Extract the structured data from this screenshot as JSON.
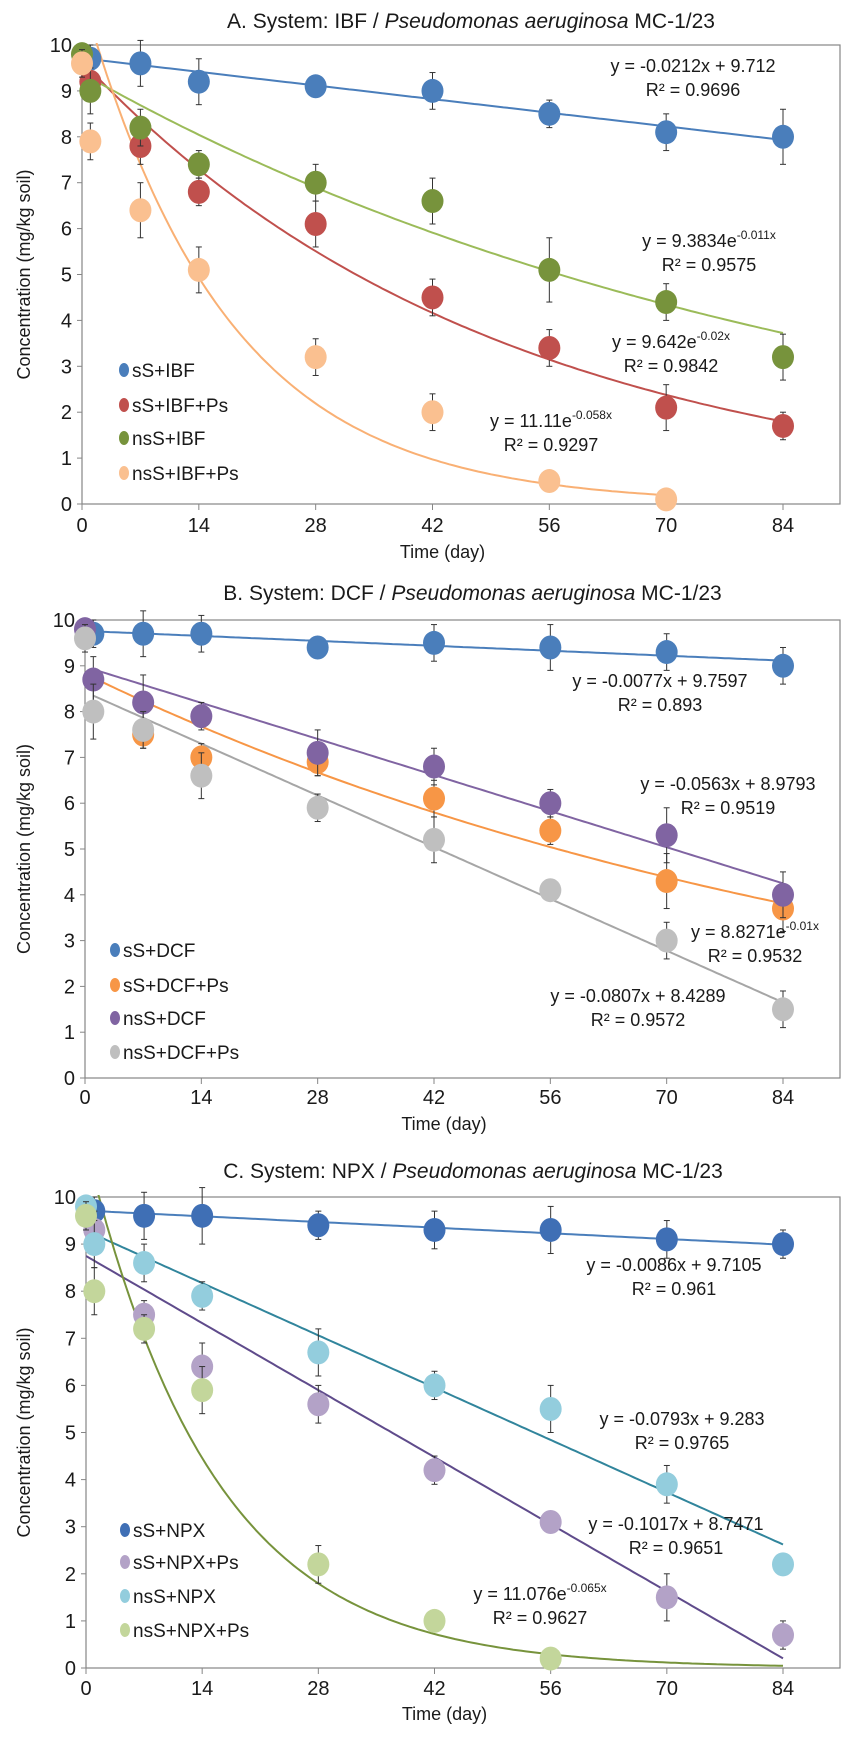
{
  "chart_data": [
    {
      "type": "scatter",
      "title": {
        "prefix": "A. System: IBF / ",
        "italic": "Pseudomonas aeruginosa",
        "suffix": " MC-1/23"
      },
      "xlabel": "Time (day)",
      "ylabel": "Concentration (mg/kg soil)",
      "xlim": [
        0,
        84
      ],
      "ylim": [
        0,
        10
      ],
      "xticks": [
        0,
        14,
        28,
        42,
        56,
        70,
        84
      ],
      "yticks": [
        0,
        1,
        2,
        3,
        4,
        5,
        6,
        7,
        8,
        9,
        10
      ],
      "legend_position": "bottom-left",
      "x": [
        0,
        1,
        7,
        14,
        28,
        42,
        56,
        70,
        84
      ],
      "series": [
        {
          "name": "sS+IBF",
          "color": "#4a7ebb",
          "values": [
            null,
            9.7,
            9.6,
            9.2,
            9.1,
            9.0,
            8.5,
            8.1,
            8.0
          ],
          "errors": [
            null,
            0.3,
            0.5,
            0.5,
            0.1,
            0.4,
            0.3,
            0.4,
            0.6
          ],
          "trend": {
            "type": "linear",
            "slope": -0.0212,
            "intercept": 9.712,
            "color": "#4a7ebb",
            "range": [
              0,
              84
            ],
            "label": "y = -0.0212x + 9.712",
            "exp": "",
            "r2": "R² = 0.9696"
          }
        },
        {
          "name": "sS+IBF+Ps",
          "color": "#c0504d",
          "values": [
            null,
            9.2,
            7.8,
            6.8,
            6.1,
            4.5,
            3.4,
            2.1,
            1.7
          ],
          "errors": [
            null,
            0.3,
            0.4,
            0.3,
            0.5,
            0.4,
            0.4,
            0.5,
            0.3
          ],
          "trend": {
            "type": "exp",
            "a": 9.642,
            "b": -0.02,
            "color": "#c0504d",
            "range": [
              0,
              84
            ],
            "label": "y = 9.642e",
            "exp": "-0.02x",
            "r2": "R² = 0.9842"
          }
        },
        {
          "name": "nsS+IBF",
          "color": "#77933c",
          "values": [
            9.8,
            9.0,
            8.2,
            7.4,
            7.0,
            6.6,
            5.1,
            4.4,
            3.2
          ],
          "errors": [
            0.2,
            0.5,
            0.4,
            0.3,
            0.4,
            0.5,
            0.7,
            0.4,
            0.5
          ],
          "trend": {
            "type": "exp",
            "a": 9.3834,
            "b": -0.011,
            "color": "#9bbb59",
            "range": [
              0,
              84
            ],
            "label": "y = 9.3834e",
            "exp": "-0.011x",
            "r2": "R² = 0.9575"
          }
        },
        {
          "name": "nsS+IBF+Ps",
          "color": "#fac090",
          "values": [
            9.6,
            7.9,
            6.4,
            5.1,
            3.2,
            2.0,
            0.5,
            0.1,
            null
          ],
          "errors": [
            0.3,
            0.4,
            0.6,
            0.5,
            0.4,
            0.4,
            0.1,
            0.1,
            null
          ],
          "trend": {
            "type": "exp",
            "a": 11.11,
            "b": -0.058,
            "color": "#f9b074",
            "range": [
              0,
              70
            ],
            "label": "y = 11.11e",
            "exp": "-0.058x",
            "r2": "R² = 0.9297"
          }
        }
      ]
    },
    {
      "type": "scatter",
      "title": {
        "prefix": "B. System: DCF / ",
        "italic": "Pseudomonas aeruginosa",
        "suffix": " MC-1/23"
      },
      "xlabel": "Time (day)",
      "ylabel": "Concentration (mg/kg soil)",
      "xlim": [
        0,
        84
      ],
      "ylim": [
        0,
        10
      ],
      "xticks": [
        0,
        14,
        28,
        42,
        56,
        70,
        84
      ],
      "yticks": [
        0,
        1,
        2,
        3,
        4,
        5,
        6,
        7,
        8,
        9,
        10
      ],
      "legend_position": "bottom-left",
      "x": [
        0,
        1,
        7,
        14,
        28,
        42,
        56,
        70,
        84
      ],
      "series": [
        {
          "name": "sS+DCF",
          "color": "#4a7ebb",
          "values": [
            null,
            9.7,
            9.7,
            9.7,
            9.4,
            9.5,
            9.4,
            9.3,
            9.0
          ],
          "errors": [
            null,
            0.3,
            0.5,
            0.4,
            0.2,
            0.4,
            0.5,
            0.4,
            0.4
          ],
          "trend": {
            "type": "linear",
            "slope": -0.0077,
            "intercept": 9.7597,
            "color": "#4a7ebb",
            "range": [
              0,
              84
            ],
            "label": "y = -0.0077x + 9.7597",
            "exp": "",
            "r2": "R² = 0.893"
          }
        },
        {
          "name": "sS+DCF+Ps",
          "color": "#f79646",
          "values": [
            null,
            null,
            7.5,
            7.0,
            6.9,
            6.1,
            5.4,
            4.3,
            3.7
          ],
          "errors": [
            null,
            null,
            0.3,
            0.3,
            0.3,
            0.4,
            0.3,
            0.6,
            0.5
          ],
          "trend": {
            "type": "exp",
            "a": 8.8271,
            "b": -0.01,
            "color": "#f79646",
            "range": [
              1,
              84
            ],
            "label": "y = 8.8271e",
            "exp": "-0.01x",
            "r2": "R² = 0.9532"
          }
        },
        {
          "name": "nsS+DCF",
          "color": "#8064a2",
          "values": [
            9.8,
            8.7,
            8.2,
            7.9,
            7.1,
            6.8,
            6.0,
            5.3,
            4.0
          ],
          "errors": [
            0.2,
            0.5,
            0.6,
            0.3,
            0.5,
            0.4,
            0.3,
            0.6,
            0.5
          ],
          "trend": {
            "type": "linear",
            "slope": -0.0563,
            "intercept": 8.9793,
            "color": "#8064a2",
            "range": [
              1,
              84
            ],
            "label": "y = -0.0563x + 8.9793",
            "exp": "",
            "r2": "R² = 0.9519"
          }
        },
        {
          "name": "nsS+DCF+Ps",
          "color": "#bfbfbf",
          "values": [
            9.6,
            8.0,
            7.6,
            6.6,
            5.9,
            5.2,
            4.1,
            3.0,
            1.5
          ],
          "errors": [
            0.3,
            0.6,
            0.4,
            0.5,
            0.3,
            0.5,
            0.1,
            0.4,
            0.4
          ],
          "trend": {
            "type": "linear",
            "slope": -0.0807,
            "intercept": 8.4289,
            "color": "#a6a6a6",
            "range": [
              1,
              84
            ],
            "label": "y = -0.0807x + 8.4289",
            "exp": "",
            "r2": "R² = 0.9572"
          }
        }
      ]
    },
    {
      "type": "scatter",
      "title": {
        "prefix": "C. System: NPX / ",
        "italic": "Pseudomonas aeruginosa",
        "suffix": " MC-1/23"
      },
      "xlabel": "Time (day)",
      "ylabel": "Concentration (mg/kg soil)",
      "xlim": [
        0,
        84
      ],
      "ylim": [
        0,
        10
      ],
      "xticks": [
        0,
        14,
        28,
        42,
        56,
        70,
        84
      ],
      "yticks": [
        0,
        1,
        2,
        3,
        4,
        5,
        6,
        7,
        8,
        9,
        10
      ],
      "legend_position": "bottom-left",
      "x": [
        0,
        1,
        7,
        14,
        28,
        42,
        56,
        70,
        84
      ],
      "series": [
        {
          "name": "sS+NPX",
          "color": "#3f6fb5",
          "values": [
            null,
            9.7,
            9.6,
            9.6,
            9.4,
            9.3,
            9.3,
            9.1,
            9.0
          ],
          "errors": [
            null,
            0.3,
            0.5,
            0.6,
            0.3,
            0.4,
            0.5,
            0.4,
            0.3
          ],
          "trend": {
            "type": "linear",
            "slope": -0.0086,
            "intercept": 9.7105,
            "color": "#4a7ebb",
            "range": [
              0,
              84
            ],
            "label": "y = -0.0086x + 9.7105",
            "exp": "",
            "r2": "R² = 0.961"
          }
        },
        {
          "name": "sS+NPX+Ps",
          "color": "#b3a2c7",
          "values": [
            null,
            9.3,
            7.5,
            6.4,
            5.6,
            4.2,
            3.1,
            1.5,
            0.7
          ],
          "errors": [
            null,
            0.4,
            0.3,
            0.5,
            0.4,
            0.3,
            0.2,
            0.5,
            0.3
          ],
          "trend": {
            "type": "linear",
            "slope": -0.1017,
            "intercept": 8.7471,
            "color": "#5f4b8b",
            "range": [
              0,
              84
            ],
            "label": "y = -0.1017x + 8.7471",
            "exp": "",
            "r2": "R² = 0.9651"
          }
        },
        {
          "name": "nsS+NPX",
          "color": "#93cddd",
          "values": [
            9.8,
            9.0,
            8.6,
            7.9,
            6.7,
            6.0,
            5.5,
            3.9,
            2.2
          ],
          "errors": [
            0.2,
            0.5,
            0.4,
            0.3,
            0.5,
            0.3,
            0.5,
            0.4,
            0.2
          ],
          "trend": {
            "type": "linear",
            "slope": -0.0793,
            "intercept": 9.283,
            "color": "#31859c",
            "range": [
              0,
              84
            ],
            "label": "y = -0.0793x + 9.283",
            "exp": "",
            "r2": "R² = 0.9765"
          }
        },
        {
          "name": "nsS+NPX+Ps",
          "color": "#c3d69b",
          "values": [
            9.6,
            8.0,
            7.2,
            5.9,
            2.2,
            1.0,
            0.2,
            null,
            null
          ],
          "errors": [
            0.3,
            0.5,
            0.3,
            0.5,
            0.4,
            0.1,
            0.1,
            null,
            null
          ],
          "trend": {
            "type": "exp",
            "a": 11.076,
            "b": -0.065,
            "color": "#77933c",
            "range": [
              0,
              84
            ],
            "label": "y = 11.076e",
            "exp": "-0.065x",
            "r2": "R² = 0.9627"
          }
        }
      ]
    }
  ]
}
